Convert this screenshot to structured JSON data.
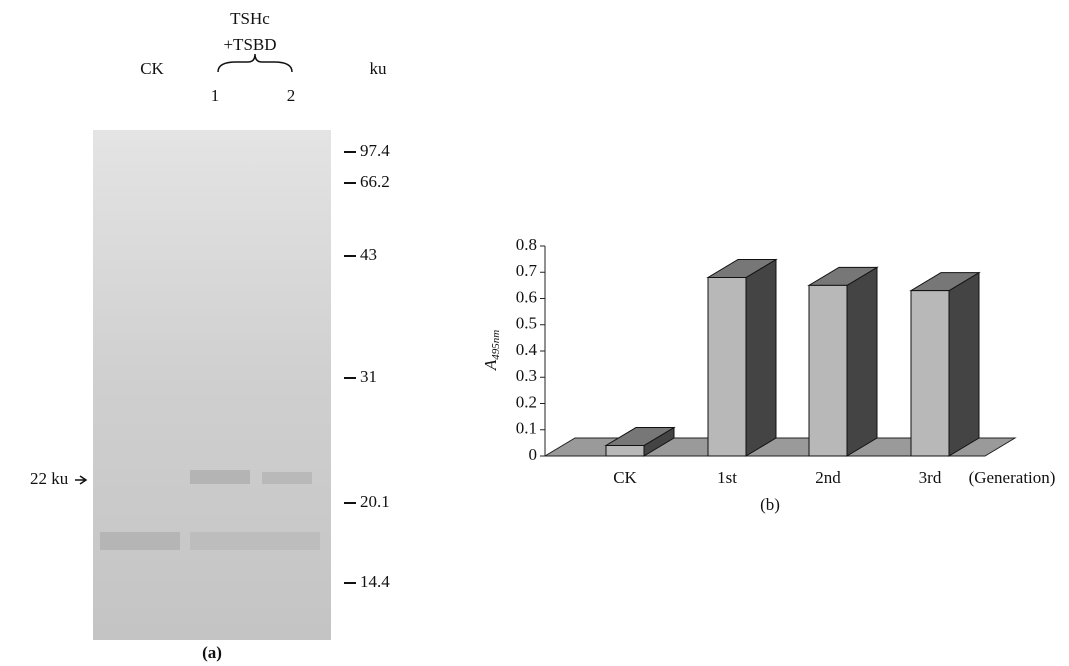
{
  "gel": {
    "lanes": {
      "control": "CK",
      "treatment_line1": "TSHc",
      "treatment_line2": "+TSBD",
      "lane1": "1",
      "lane2": "2",
      "unit": "ku"
    },
    "markers": [
      97.4,
      66.2,
      43,
      31,
      20.1,
      14.4
    ],
    "band_label": "22 ku",
    "caption": "(a)"
  },
  "chart_data": {
    "type": "bar3d",
    "y_label": "A",
    "y_label_sub": "495nm",
    "categories": [
      "CK",
      "1st",
      "2nd",
      "3rd"
    ],
    "x_label": "(Generation)",
    "values": [
      0.04,
      0.68,
      0.65,
      0.63
    ],
    "ylim": [
      0,
      0.8
    ],
    "yticks": [
      0,
      0.1,
      0.2,
      0.3,
      0.4,
      0.5,
      0.6,
      0.7,
      0.8
    ],
    "color": "#b8b8b8",
    "caption": "(b)"
  }
}
